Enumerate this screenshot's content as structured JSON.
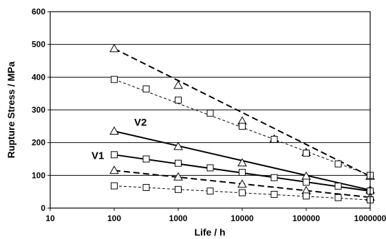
{
  "chart_data": {
    "type": "line",
    "title": "",
    "xlabel": "Life / h",
    "ylabel": "Rupture Stress / MPa",
    "xscale": "log",
    "xlim": [
      10,
      1000000
    ],
    "ylim": [
      0,
      600
    ],
    "x_ticks": [
      "10",
      "100",
      "1000",
      "10000",
      "100000",
      "1000000"
    ],
    "y_ticks": [
      "0",
      "100",
      "200",
      "300",
      "400",
      "500",
      "600"
    ],
    "grid": "horizontal",
    "legend": "none",
    "annotations": [
      {
        "text": "V2",
        "series": "s3"
      },
      {
        "text": "V1",
        "series": "s4"
      }
    ],
    "series": [
      {
        "id": "s1",
        "line": "dashed-thick",
        "marker": "triangle",
        "markers": [
          [
            100,
            487
          ],
          [
            1000,
            375
          ],
          [
            10000,
            266
          ],
          [
            31623,
            211
          ],
          [
            100000,
            170
          ],
          [
            1000000,
            97
          ]
        ],
        "fit": [
          [
            100,
            487
          ],
          [
            1000000,
            97
          ]
        ]
      },
      {
        "id": "s2",
        "line": "dashed-thin",
        "marker": "square",
        "markers": [
          [
            100,
            393
          ],
          [
            316,
            364
          ],
          [
            1000,
            330
          ],
          [
            3162,
            290
          ],
          [
            10000,
            250
          ],
          [
            31623,
            210
          ],
          [
            100000,
            168
          ],
          [
            316228,
            135
          ],
          [
            1000000,
            100
          ]
        ],
        "fit": [
          [
            100,
            393
          ],
          [
            1000000,
            100
          ]
        ]
      },
      {
        "id": "s3",
        "line": "solid",
        "marker": "triangle",
        "markers": [
          [
            100,
            235
          ],
          [
            1000,
            188
          ],
          [
            10000,
            138
          ],
          [
            100000,
            97
          ],
          [
            1000000,
            55
          ]
        ],
        "fit": [
          [
            100,
            235
          ],
          [
            1000000,
            55
          ]
        ]
      },
      {
        "id": "s4",
        "line": "solid",
        "marker": "square",
        "markers": [
          [
            100,
            163
          ],
          [
            316,
            150
          ],
          [
            1000,
            137
          ],
          [
            3162,
            123
          ],
          [
            10000,
            109
          ],
          [
            31623,
            93
          ],
          [
            100000,
            79
          ],
          [
            316228,
            67
          ],
          [
            1000000,
            52
          ]
        ],
        "fit": [
          [
            100,
            163
          ],
          [
            1000000,
            52
          ]
        ]
      },
      {
        "id": "s5",
        "line": "dashed-thick",
        "marker": "triangle",
        "markers": [
          [
            100,
            115
          ],
          [
            1000,
            95
          ],
          [
            10000,
            73
          ],
          [
            100000,
            53
          ],
          [
            1000000,
            33
          ]
        ],
        "fit": [
          [
            100,
            115
          ],
          [
            1000000,
            33
          ]
        ]
      },
      {
        "id": "s6",
        "line": "dashed-thin",
        "marker": "square",
        "markers": [
          [
            100,
            68
          ],
          [
            316,
            63
          ],
          [
            1000,
            57
          ],
          [
            3162,
            52
          ],
          [
            10000,
            47
          ],
          [
            31623,
            42
          ],
          [
            100000,
            37
          ],
          [
            316228,
            32
          ],
          [
            1000000,
            25
          ]
        ],
        "fit": [
          [
            100,
            68
          ],
          [
            1000000,
            25
          ]
        ]
      }
    ]
  }
}
